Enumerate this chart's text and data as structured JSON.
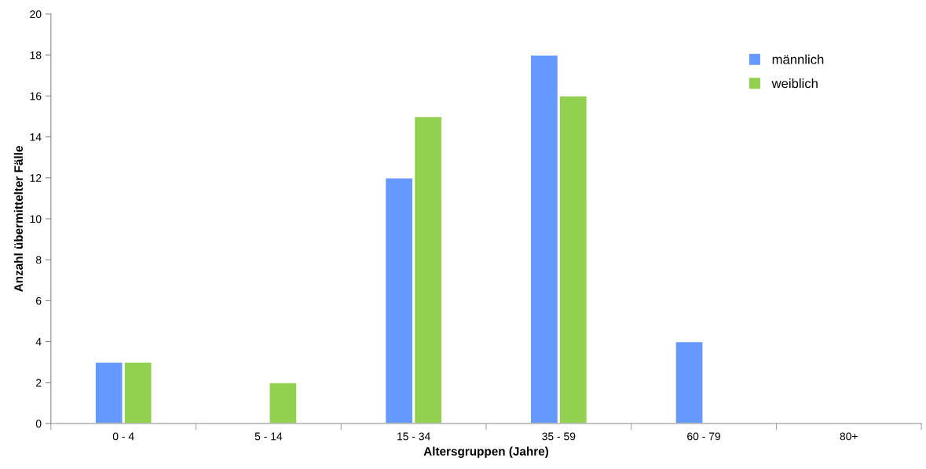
{
  "chart_data": {
    "type": "bar",
    "xlabel": "Altersgruppen (Jahre)",
    "ylabel": "Anzahl übermittelter Fälle",
    "categories": [
      "0 - 4",
      "5 - 14",
      "15 - 34",
      "35 - 59",
      "60 - 79",
      "80+"
    ],
    "series": [
      {
        "name": "männlich",
        "color": "#6699ff",
        "values": [
          3,
          0,
          12,
          18,
          4,
          0
        ]
      },
      {
        "name": "weiblich",
        "color": "#92d050",
        "values": [
          3,
          2,
          15,
          16,
          0,
          0
        ]
      }
    ],
    "ylim": [
      0,
      20
    ],
    "yticks": [
      0,
      2,
      4,
      6,
      8,
      10,
      12,
      14,
      16,
      18,
      20
    ],
    "grid": false,
    "legend": "top right"
  }
}
